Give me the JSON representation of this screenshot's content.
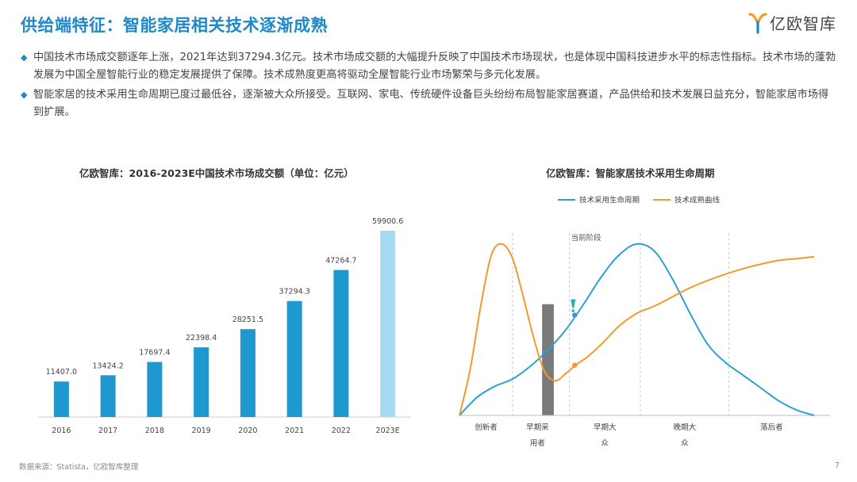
{
  "page": {
    "title": "供给端特征：智能家居相关技术逐渐成熟",
    "logo_text": "亿欧智库",
    "bullets": [
      "中国技术市场成交额逐年上涨，2021年达到37294.3亿元。技术市场成交额的大幅提升反映了中国技术市场现状，也是体现中国科技进步水平的标志性指标。技术市场的蓬勃发展为中国全屋智能行业的稳定发展提供了保障。技术成熟度更高将驱动全屋智能行业市场繁荣与多元化发展。",
      "智能家居的技术采用生命周期已度过最低谷，逐渐被大众所接受。互联网、家电、传统硬件设备巨头纷纷布局智能家居赛道，产品供给和技术发展日益充分，智能家居市场得到扩展。"
    ],
    "bullet_icon": "diamond-icon",
    "source": "数据来源：Statista，亿欧智库整理",
    "page_number": "7",
    "colors": {
      "title": "#1e88c8",
      "bar": "#1f98d0",
      "bar_estimate": "#a6d9f2",
      "adoption_line": "#2e9fd4",
      "maturity_line": "#f39a2b",
      "chasm_band": "#7a7a7a",
      "marker": "#22b5ad"
    }
  },
  "chart_data": [
    {
      "type": "bar",
      "title": "亿欧智库：2016-2023E中国技术市场成交额（单位：亿元）",
      "categories": [
        "2016",
        "2017",
        "2018",
        "2019",
        "2020",
        "2021",
        "2022",
        "2023E"
      ],
      "values": [
        11407.0,
        13424.2,
        17697.4,
        22398.4,
        28251.5,
        37294.3,
        47264.7,
        59900.6
      ],
      "value_labels": [
        "11407.0",
        "13424.2",
        "17697.4",
        "22398.4",
        "28251.5",
        "37294.3",
        "47264.7",
        "59900.6"
      ],
      "estimate_index": 7,
      "ylim": [
        0,
        65000
      ],
      "grid": false
    },
    {
      "type": "line",
      "title": "亿欧智库：智能家居技术采用生命周期",
      "legend_position": "top",
      "x_range": [
        0,
        10
      ],
      "y_range": [
        0,
        10
      ],
      "series": [
        {
          "name": "技术采用生命周期",
          "x": [
            0,
            0.5,
            1,
            1.5,
            2,
            2.5,
            3,
            3.5,
            4,
            4.5,
            5,
            5.5,
            6,
            6.5,
            7,
            7.5,
            8,
            8.5,
            9,
            9.5,
            10
          ],
          "y": [
            0,
            1.0,
            1.6,
            2.0,
            2.7,
            3.6,
            4.7,
            6.1,
            7.6,
            8.8,
            9.4,
            9.0,
            7.5,
            5.6,
            3.9,
            2.9,
            2.2,
            1.5,
            0.8,
            0.3,
            0
          ]
        },
        {
          "name": "技术成熟曲线",
          "x": [
            0,
            0.3,
            0.6,
            0.9,
            1.2,
            1.5,
            1.8,
            2.1,
            2.4,
            2.7,
            3.0,
            3.3,
            3.6,
            4.0,
            4.5,
            5.0,
            5.5,
            6.0,
            6.5,
            7.0,
            7.5,
            8.0,
            8.5,
            9.0,
            9.5,
            10
          ],
          "y": [
            0,
            2.5,
            6.0,
            8.8,
            9.4,
            8.6,
            6.5,
            4.2,
            2.4,
            1.9,
            2.3,
            2.8,
            3.2,
            3.9,
            4.9,
            5.6,
            6.0,
            6.5,
            7.0,
            7.4,
            7.75,
            8.05,
            8.3,
            8.5,
            8.6,
            8.7
          ]
        }
      ],
      "phase_boundaries": [
        1.5,
        3.1,
        5.1,
        7.6
      ],
      "chasm_band": [
        2.33,
        2.66
      ],
      "current_stage_x": 3.1,
      "current_stage_label": "当前阶段",
      "markers": [
        {
          "series": 0,
          "x": 3.25,
          "y": 5.5
        },
        {
          "series": 1,
          "x": 3.25,
          "y": 2.75
        }
      ],
      "phases": [
        {
          "x": 0.75,
          "lines": [
            "创新者"
          ]
        },
        {
          "x": 2.2,
          "lines": [
            "早期采",
            "用者"
          ]
        },
        {
          "x": 4.1,
          "lines": [
            "早期大",
            "众"
          ]
        },
        {
          "x": 6.35,
          "lines": [
            "晚期大",
            "众"
          ]
        },
        {
          "x": 8.8,
          "lines": [
            "落后者"
          ]
        }
      ]
    }
  ]
}
